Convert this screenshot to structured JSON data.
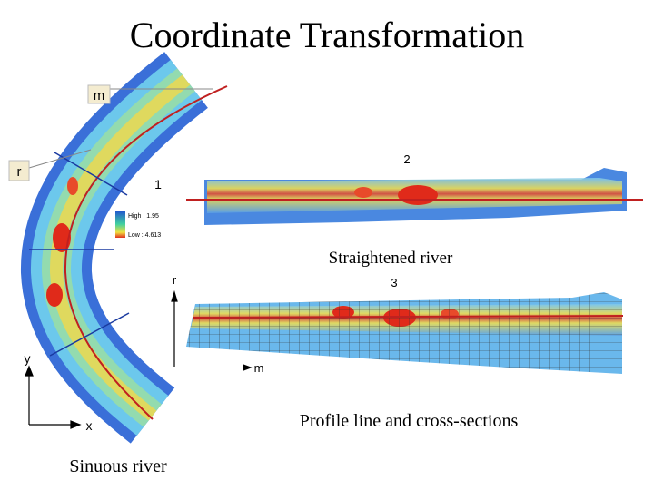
{
  "header": {
    "title": "Coordinate Transformation"
  },
  "sinuous": {
    "label_m": "m",
    "label_r": "r",
    "section_1": "1",
    "legend_high": "High : 1.95",
    "legend_low": "Low : 4.613",
    "axis_y": "y",
    "axis_x": "x",
    "caption": "Sinuous river"
  },
  "straightened": {
    "section_2": "2",
    "caption": "Straightened river"
  },
  "profile": {
    "section_3": "3",
    "axis_r": "r",
    "axis_m": "m",
    "caption": "Profile line and cross-sections"
  }
}
